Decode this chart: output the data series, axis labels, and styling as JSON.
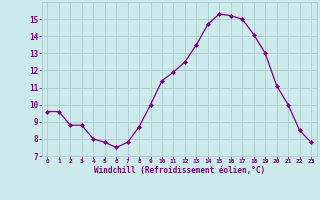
{
  "x": [
    0,
    1,
    2,
    3,
    4,
    5,
    6,
    7,
    8,
    9,
    10,
    11,
    12,
    13,
    14,
    15,
    16,
    17,
    18,
    19,
    20,
    21,
    22,
    23
  ],
  "y": [
    9.6,
    9.6,
    8.8,
    8.8,
    8.0,
    7.8,
    7.5,
    7.8,
    8.7,
    10.0,
    11.4,
    11.9,
    12.5,
    13.5,
    14.7,
    15.3,
    15.2,
    15.0,
    14.1,
    13.0,
    11.1,
    10.0,
    8.5,
    7.8
  ],
  "line_color": "#800080",
  "marker": "D",
  "marker_size": 2.0,
  "bg_color": "#cceaea",
  "grid_color": "#aacccc",
  "xlabel": "Windchill (Refroidissement éolien,°C)",
  "xlabel_color": "#800080",
  "tick_color": "#800080",
  "ylim": [
    7,
    16
  ],
  "xlim": [
    -0.5,
    23.5
  ],
  "yticks": [
    7,
    8,
    9,
    10,
    11,
    12,
    13,
    14,
    15
  ],
  "xticks": [
    0,
    1,
    2,
    3,
    4,
    5,
    6,
    7,
    8,
    9,
    10,
    11,
    12,
    13,
    14,
    15,
    16,
    17,
    18,
    19,
    20,
    21,
    22,
    23
  ]
}
